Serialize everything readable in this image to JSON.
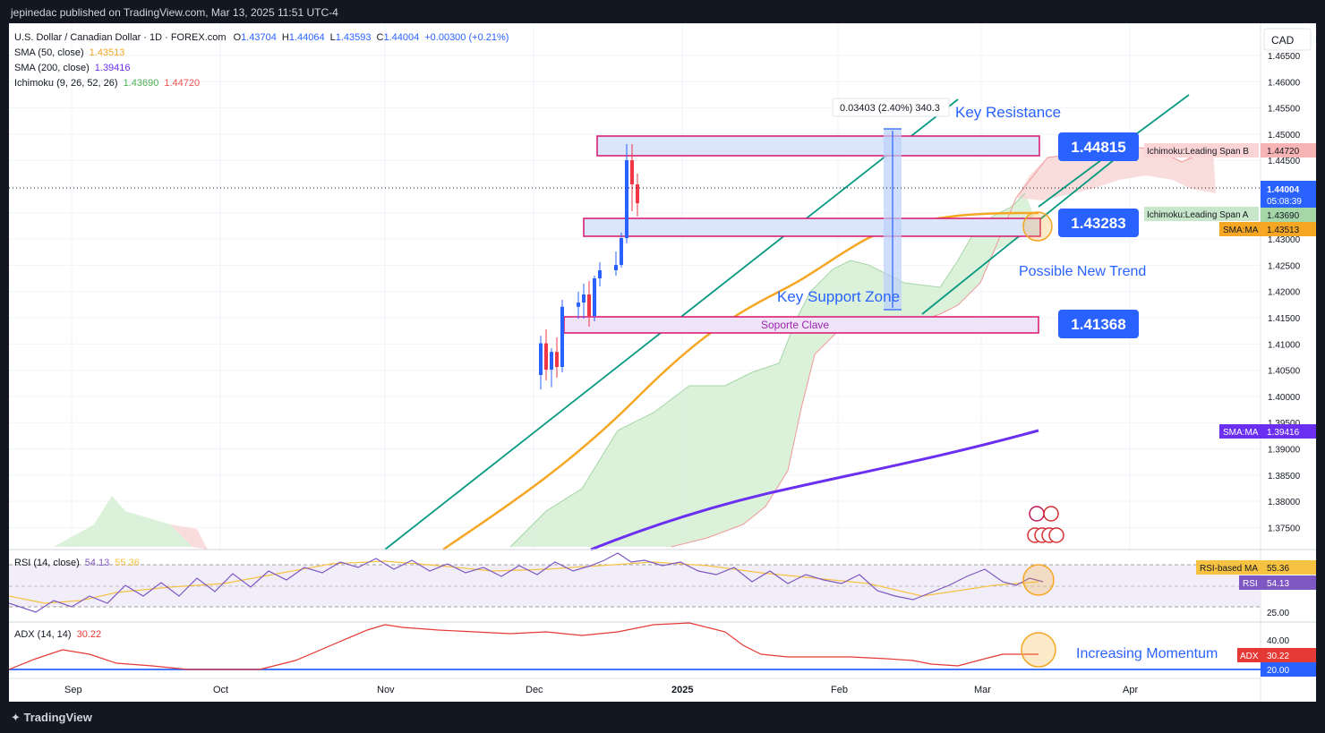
{
  "header": {
    "published": "jepinedac published on TradingView.com, Mar 13, 2025 11:51 UTC-4"
  },
  "legend": {
    "symbol": "U.S. Dollar / Canadian Dollar · 1D · FOREX.com",
    "o_label": "O",
    "o": "1.43704",
    "h_label": "H",
    "h": "1.44064",
    "l_label": "L",
    "l": "1.43593",
    "c_label": "C",
    "c": "1.44004",
    "change": "+0.00300 (+0.21%)",
    "sma50_label": "SMA (50, close)",
    "sma50": "1.43513",
    "sma200_label": "SMA (200, close)",
    "sma200": "1.39416",
    "ichimoku_label": "Ichimoku (9, 26, 52, 26)",
    "ichimoku_a": "1.43690",
    "ichimoku_b": "1.44720"
  },
  "currency": "CAD",
  "annotations": {
    "key_resistance": "Key Resistance",
    "key_support": "Key Support Zone",
    "soporte": "Soporte Clave",
    "possible_trend": "Possible New Trend",
    "increasing_momentum": "Increasing Momentum",
    "measure": "0.03403 (2.40%) 340.3",
    "level_high": "1.44815",
    "level_mid": "1.43283",
    "level_low": "1.41368"
  },
  "price_scale": {
    "ticks": [
      "1.46500",
      "1.46000",
      "1.45500",
      "1.45000",
      "1.44500",
      "1.44000",
      "1.43500",
      "1.43000",
      "1.42500",
      "1.42000",
      "1.41500",
      "1.41000",
      "1.40500",
      "1.40000",
      "1.39500",
      "1.39000",
      "1.38500",
      "1.38000",
      "1.37500"
    ],
    "last_price": "1.44004",
    "countdown": "05:08:39",
    "ichimoku_b_tag": "Ichimoku:Leading Span B",
    "ichimoku_b_val": "1.44720",
    "ichimoku_a_tag": "Ichimoku:Leading Span A",
    "ichimoku_a_val": "1.43690",
    "sma50_tag": "SMA:MA",
    "sma50_val": "1.43513",
    "sma200_tag": "SMA:MA",
    "sma200_val": "1.39416"
  },
  "rsi": {
    "label": "RSI (14, close)",
    "value": "54.13",
    "ma_value": "55.36",
    "ma_tag": "RSI-based MA",
    "rsi_tag": "RSI",
    "level_high": "",
    "level_low": "25.00"
  },
  "adx": {
    "label": "ADX (14, 14)",
    "value": "30.22",
    "tag": "ADX",
    "level_40": "40.00",
    "level_20": "20.00"
  },
  "time_axis": [
    "Sep",
    "Oct",
    "Nov",
    "Dec",
    "2025",
    "Feb",
    "Mar",
    "Apr"
  ],
  "footer": {
    "brand": "TradingView"
  },
  "colors": {
    "up": "#2962ff",
    "down": "#f23645",
    "sma50": "#f5a623",
    "sma200": "#6a2ff0",
    "cloud_green": "#d6efd3",
    "cloud_red": "#f8d7d6",
    "trend": "#089981",
    "zone_fill": "#dbe6fb",
    "zone_border": "#d7146e",
    "rsi": "#7e57c2",
    "adx": "#e53935"
  },
  "chart_data": {
    "type": "candlestick",
    "instrument": "USDCAD",
    "timeframe": "1D",
    "y_range": [
      1.371,
      1.469
    ],
    "x_range": [
      "2024-08-25",
      "2025-04-15"
    ],
    "candles": [
      {
        "d": "2024-12-02",
        "o": 1.4035,
        "h": 1.4108,
        "l": 1.4008,
        "c": 1.4094
      },
      {
        "d": "2024-12-03",
        "o": 1.4094,
        "h": 1.412,
        "l": 1.4025,
        "c": 1.4045
      },
      {
        "d": "2024-12-04",
        "o": 1.4045,
        "h": 1.4085,
        "l": 1.4012,
        "c": 1.4078
      },
      {
        "d": "2024-12-05",
        "o": 1.4078,
        "h": 1.4105,
        "l": 1.403,
        "c": 1.405
      },
      {
        "d": "2024-12-06",
        "o": 1.405,
        "h": 1.4175,
        "l": 1.404,
        "c": 1.4162
      },
      {
        "d": "2024-12-09",
        "o": 1.4162,
        "h": 1.419,
        "l": 1.414,
        "c": 1.417
      },
      {
        "d": "2024-12-10",
        "o": 1.417,
        "h": 1.4205,
        "l": 1.414,
        "c": 1.4185
      },
      {
        "d": "2024-12-11",
        "o": 1.4185,
        "h": 1.421,
        "l": 1.4125,
        "c": 1.4145
      },
      {
        "d": "2024-12-12",
        "o": 1.4145,
        "h": 1.422,
        "l": 1.4135,
        "c": 1.4215
      },
      {
        "d": "2024-12-13",
        "o": 1.4215,
        "h": 1.4245,
        "l": 1.42,
        "c": 1.423
      },
      {
        "d": "2024-12-16",
        "o": 1.423,
        "h": 1.4265,
        "l": 1.422,
        "c": 1.424
      },
      {
        "d": "2024-12-17",
        "o": 1.424,
        "h": 1.43,
        "l": 1.4235,
        "c": 1.429
      },
      {
        "d": "2024-12-18",
        "o": 1.429,
        "h": 1.4465,
        "l": 1.428,
        "c": 1.4435
      },
      {
        "d": "2024-12-19",
        "o": 1.4435,
        "h": 1.4465,
        "l": 1.434,
        "c": 1.439
      },
      {
        "d": "2024-12-20",
        "o": 1.439,
        "h": 1.441,
        "l": 1.433,
        "c": 1.4355
      }
    ]
  }
}
